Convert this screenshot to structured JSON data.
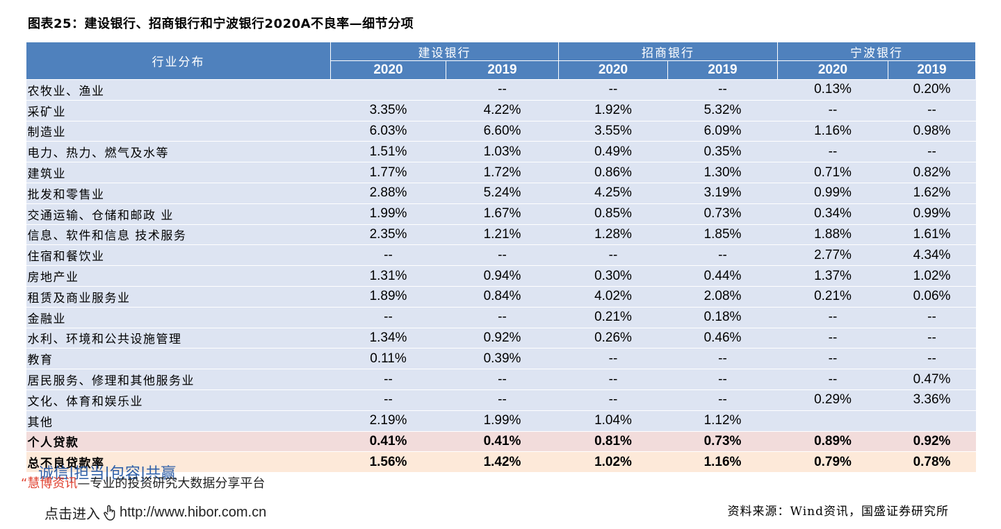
{
  "title": "图表25：建设银行、招商银行和宁波银行2020A不良率—细节分项",
  "table": {
    "category_header": "行业分布",
    "banks": [
      "建设银行",
      "招商银行",
      "宁波银行"
    ],
    "years": [
      "2020",
      "2019",
      "2020",
      "2019",
      "2020",
      "2019"
    ],
    "rows": [
      {
        "name": "农牧业、渔业",
        "values": [
          "",
          "--",
          "--",
          "--",
          "0.13%",
          "0.20%"
        ]
      },
      {
        "name": "采矿业",
        "values": [
          "3.35%",
          "4.22%",
          "1.92%",
          "5.32%",
          "--",
          "--"
        ]
      },
      {
        "name": "制造业",
        "values": [
          "6.03%",
          "6.60%",
          "3.55%",
          "6.09%",
          "1.16%",
          "0.98%"
        ]
      },
      {
        "name": "电力、热力、燃气及水等",
        "values": [
          "1.51%",
          "1.03%",
          "0.49%",
          "0.35%",
          "--",
          "--"
        ]
      },
      {
        "name": "建筑业",
        "values": [
          "1.77%",
          "1.72%",
          "0.86%",
          "1.30%",
          "0.71%",
          "0.82%"
        ]
      },
      {
        "name": "批发和零售业",
        "values": [
          "2.88%",
          "5.24%",
          "4.25%",
          "3.19%",
          "0.99%",
          "1.62%"
        ]
      },
      {
        "name": "交通运输、仓储和邮政 业",
        "values": [
          "1.99%",
          "1.67%",
          "0.85%",
          "0.73%",
          "0.34%",
          "0.99%"
        ]
      },
      {
        "name": "信息、软件和信息 技术服务",
        "values": [
          "2.35%",
          "1.21%",
          "1.28%",
          "1.85%",
          "1.88%",
          "1.61%"
        ]
      },
      {
        "name": "住宿和餐饮业",
        "values": [
          "--",
          "--",
          "--",
          "--",
          "2.77%",
          "4.34%"
        ]
      },
      {
        "name": "房地产业",
        "values": [
          "1.31%",
          "0.94%",
          "0.30%",
          "0.44%",
          "1.37%",
          "1.02%"
        ]
      },
      {
        "name": "租赁及商业服务业",
        "values": [
          "1.89%",
          "0.84%",
          "4.02%",
          "2.08%",
          "0.21%",
          "0.06%"
        ]
      },
      {
        "name": "金融业",
        "values": [
          "--",
          "--",
          "0.21%",
          "0.18%",
          "--",
          "--"
        ]
      },
      {
        "name": "水利、环境和公共设施管理",
        "values": [
          "1.34%",
          "0.92%",
          "0.26%",
          "0.46%",
          "--",
          "--"
        ]
      },
      {
        "name": "教育",
        "values": [
          "0.11%",
          "0.39%",
          "--",
          "--",
          "--",
          "--"
        ]
      },
      {
        "name": "居民服务、修理和其他服务业",
        "values": [
          "--",
          "--",
          "--",
          "--",
          "--",
          "0.47%"
        ]
      },
      {
        "name": "文化、体育和娱乐业",
        "values": [
          "--",
          "--",
          "--",
          "--",
          "0.29%",
          "3.36%"
        ]
      },
      {
        "name": "其他",
        "values": [
          "2.19%",
          "1.99%",
          "1.04%",
          "1.12%",
          "",
          ""
        ]
      }
    ],
    "personal_row": {
      "name": "个人贷款",
      "values": [
        "0.41%",
        "0.41%",
        "0.81%",
        "0.73%",
        "0.89%",
        "0.92%"
      ]
    },
    "total_row": {
      "name": "总不良贷款率",
      "values": [
        "1.56%",
        "1.42%",
        "1.02%",
        "1.16%",
        "0.79%",
        "0.78%"
      ]
    }
  },
  "watermark": {
    "slogan": "诚信|担当|包容|共赢",
    "brand": "“慧博资讯",
    "tagline": "—专业的投资研究大数据分享平台",
    "link_prefix": "点击进入",
    "link_url": "http://www.hibor.com.cn"
  },
  "source": "资料来源：Wind资讯，国盛证券研究所",
  "colors": {
    "header_blue": "#4f81bd",
    "row_blue": "#dde4f2",
    "personal_pink": "#f2dcdb",
    "total_peach": "#fde9d9"
  }
}
